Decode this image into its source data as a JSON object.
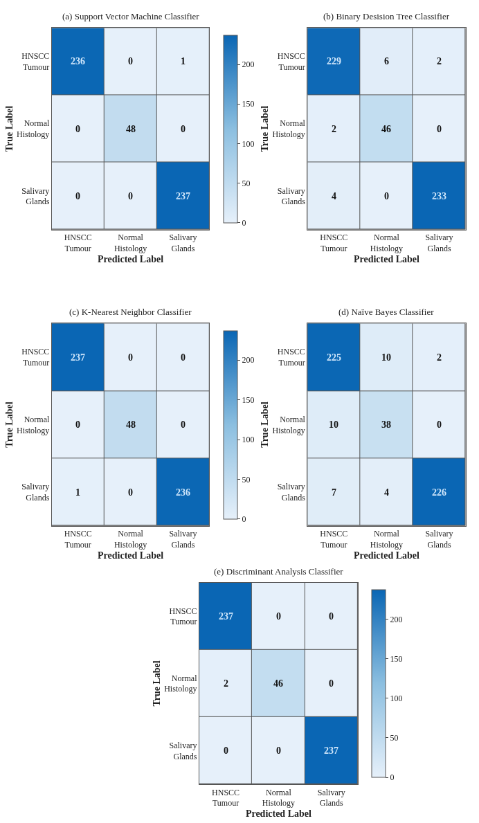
{
  "chart_data": [
    {
      "type": "heatmap",
      "title": "(a) Support Vector Machine Classifier",
      "xlabel": "Predicted Label",
      "ylabel": "True Label",
      "categories": [
        "HNSCC Tumour",
        "Normal Histology",
        "Salivary Glands"
      ],
      "y_categories": [
        "HNSCC Tumour",
        "Normal Histology",
        "Salivary Glands"
      ],
      "cells": [
        [
          236,
          0,
          1
        ],
        [
          0,
          48,
          0
        ],
        [
          0,
          0,
          237
        ]
      ],
      "data_labels": true,
      "clim": [
        0,
        237
      ],
      "cticks": [
        0,
        50,
        100,
        150,
        200
      ]
    },
    {
      "type": "heatmap",
      "title": "(b) Binary Desision Tree Classifier",
      "xlabel": "Predicted Label",
      "ylabel": "True Label",
      "categories": [
        "HNSCC Tumour",
        "Normal Histology",
        "Salivary Glands"
      ],
      "y_categories": [
        "HNSCC Tumour",
        "Normal Histology",
        "Salivary Glands"
      ],
      "cells": [
        [
          229,
          6,
          2
        ],
        [
          2,
          46,
          0
        ],
        [
          4,
          0,
          233
        ]
      ],
      "data_labels": true
    },
    {
      "type": "heatmap",
      "title": "(c) K-Nearest Neighbor Classifier",
      "xlabel": "Predicted Label",
      "ylabel": "True Label",
      "categories": [
        "HNSCC Tumour",
        "Normal Histology",
        "Salivary Glands"
      ],
      "y_categories": [
        "HNSCC Tumour",
        "Normal Histology",
        "Salivary Glands"
      ],
      "cells": [
        [
          237,
          0,
          0
        ],
        [
          0,
          48,
          0
        ],
        [
          1,
          0,
          236
        ]
      ],
      "data_labels": true,
      "clim": [
        0,
        237
      ],
      "cticks": [
        0,
        50,
        100,
        150,
        200
      ]
    },
    {
      "type": "heatmap",
      "title": "(d) Naïve Bayes Classifier",
      "xlabel": "Predicted Label",
      "ylabel": "True Label",
      "categories": [
        "HNSCC Tumour",
        "Normal Histology",
        "Salivary Glands"
      ],
      "y_categories": [
        "HNSCC Tumour",
        "Normal Histology",
        "Salivary Glands"
      ],
      "cells": [
        [
          225,
          10,
          2
        ],
        [
          10,
          38,
          0
        ],
        [
          7,
          4,
          226
        ]
      ],
      "data_labels": true
    },
    {
      "type": "heatmap",
      "title": "(e) Discriminant Analysis Classifier",
      "xlabel": "Predicted Label",
      "ylabel": "True Label",
      "categories": [
        "HNSCC Tumour",
        "Normal Histology",
        "Salivary Glands"
      ],
      "y_categories": [
        "HNSCC Tumour",
        "Normal Histology",
        "Salivary Glands"
      ],
      "cells": [
        [
          237,
          0,
          0
        ],
        [
          2,
          46,
          0
        ],
        [
          0,
          0,
          237
        ]
      ],
      "data_labels": true,
      "clim": [
        0,
        237
      ],
      "cticks": [
        0,
        50,
        100,
        150,
        200
      ]
    }
  ]
}
